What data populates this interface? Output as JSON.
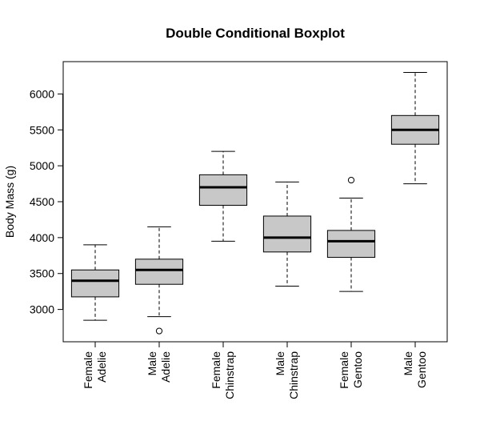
{
  "chart_data": {
    "type": "boxplot",
    "title": "Double Conditional Boxplot",
    "xlabel": "",
    "ylabel": "Body Mass (g)",
    "ylim": [
      2550,
      6450
    ],
    "yticks": [
      3000,
      3500,
      4000,
      4500,
      5000,
      5500,
      6000
    ],
    "grid": false,
    "categories": [
      {
        "line1": "Female",
        "line2": "Adelie"
      },
      {
        "line1": "Male",
        "line2": "Adelie"
      },
      {
        "line1": "Female",
        "line2": "Chinstrap"
      },
      {
        "line1": "Male",
        "line2": "Chinstrap"
      },
      {
        "line1": "Female",
        "line2": "Gentoo"
      },
      {
        "line1": "Male",
        "line2": "Gentoo"
      }
    ],
    "boxes": [
      {
        "whisker_low": 2850,
        "q1": 3175,
        "median": 3400,
        "q3": 3550,
        "whisker_high": 3900,
        "outliers": []
      },
      {
        "whisker_low": 2900,
        "q1": 3350,
        "median": 3550,
        "q3": 3700,
        "whisker_high": 4150,
        "outliers": [
          2700
        ]
      },
      {
        "whisker_low": 3950,
        "q1": 4450,
        "median": 4700,
        "q3": 4875,
        "whisker_high": 5200,
        "outliers": []
      },
      {
        "whisker_low": 3325,
        "q1": 3800,
        "median": 4000,
        "q3": 4300,
        "whisker_high": 4775,
        "outliers": []
      },
      {
        "whisker_low": 3250,
        "q1": 3725,
        "median": 3950,
        "q3": 4100,
        "whisker_high": 4550,
        "outliers": [
          4800
        ]
      },
      {
        "whisker_low": 4750,
        "q1": 5300,
        "median": 5500,
        "q3": 5700,
        "whisker_high": 6300,
        "outliers": []
      }
    ],
    "colors": {
      "box_fill": "#c8c8c8",
      "stroke": "#000000"
    }
  }
}
